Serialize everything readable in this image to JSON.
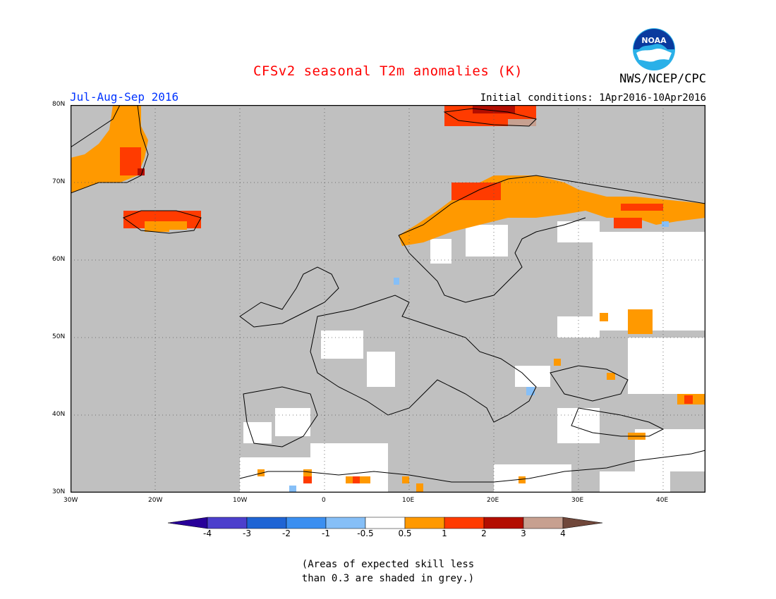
{
  "header": {
    "title": "CFSv2 seasonal T2m anomalies (K)",
    "season": "Jul-Aug-Sep 2016",
    "agency": "NWS/NCEP/CPC",
    "initial_conditions": "Initial conditions: 1Apr2016-10Apr2016",
    "logo_text": "NOAA"
  },
  "colors": {
    "title": "#ff0000",
    "season": "#0033ff",
    "grey_mask": "#c0c0c0",
    "land_white": "#ffffff"
  },
  "map": {
    "lat_ticks": [
      "80N",
      "70N",
      "60N",
      "50N",
      "40N",
      "30N"
    ],
    "lon_ticks": [
      "30W",
      "20W",
      "10W",
      "0",
      "10E",
      "20E",
      "30E",
      "40E"
    ],
    "gridlines": "dotted"
  },
  "colorbar": {
    "bins": [
      {
        "from": null,
        "to": -4,
        "color": "#280099"
      },
      {
        "from": -4,
        "to": -3,
        "color": "#4c3fcc"
      },
      {
        "from": -3,
        "to": -2,
        "color": "#1f64d4"
      },
      {
        "from": -2,
        "to": -1,
        "color": "#3b8ff0"
      },
      {
        "from": -1,
        "to": -0.5,
        "color": "#86bff7"
      },
      {
        "from": -0.5,
        "to": 0.5,
        "color": "#ffffff"
      },
      {
        "from": 0.5,
        "to": 1,
        "color": "#ff9900"
      },
      {
        "from": 1,
        "to": 2,
        "color": "#ff3b00"
      },
      {
        "from": 2,
        "to": 3,
        "color": "#b30d00"
      },
      {
        "from": 3,
        "to": 4,
        "color": "#c7a090"
      },
      {
        "from": 4,
        "to": null,
        "color": "#70473a"
      }
    ],
    "labels": [
      "-4",
      "-3",
      "-2",
      "-1",
      "-0.5",
      "0.5",
      "1",
      "2",
      "3",
      "4"
    ]
  },
  "note": {
    "line1": "(Areas of expected skill less",
    "line2": "than 0.3 are shaded in grey.)"
  }
}
